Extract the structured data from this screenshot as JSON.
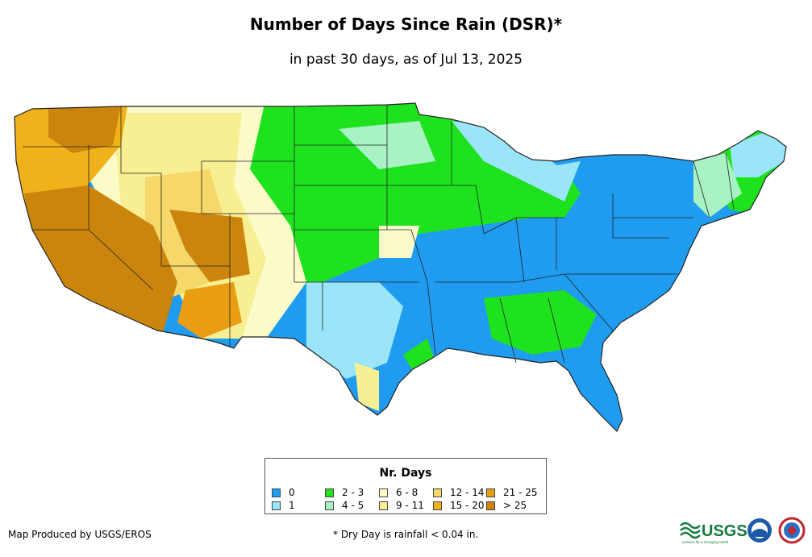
{
  "title": "Number of Days Since Rain (DSR)*",
  "subtitle": "in past 30 days, as of Jul 13, 2025",
  "legend": {
    "title": "Nr. Days",
    "items": [
      {
        "label": "0",
        "color": "#1f9cf0"
      },
      {
        "label": "1",
        "color": "#9ae6f8"
      },
      {
        "label": "2 - 3",
        "color": "#1fe21f"
      },
      {
        "label": "4 - 5",
        "color": "#a9f2c4"
      },
      {
        "label": "6 - 8",
        "color": "#fbfbc9"
      },
      {
        "label": "9 - 11",
        "color": "#f7ef91"
      },
      {
        "label": "12 - 14",
        "color": "#f5d76a"
      },
      {
        "label": "15 - 20",
        "color": "#f0b21a"
      },
      {
        "label": "21 - 25",
        "color": "#e99d12"
      },
      {
        "label": "> 25",
        "color": "#cc850c"
      }
    ]
  },
  "footer": {
    "producer": "Map Produced by USGS/EROS",
    "note": "* Dry Day is rainfall < 0.04 in."
  },
  "logos": {
    "usgs_text": "USGS",
    "usgs_tagline": "science for a changing world"
  }
}
